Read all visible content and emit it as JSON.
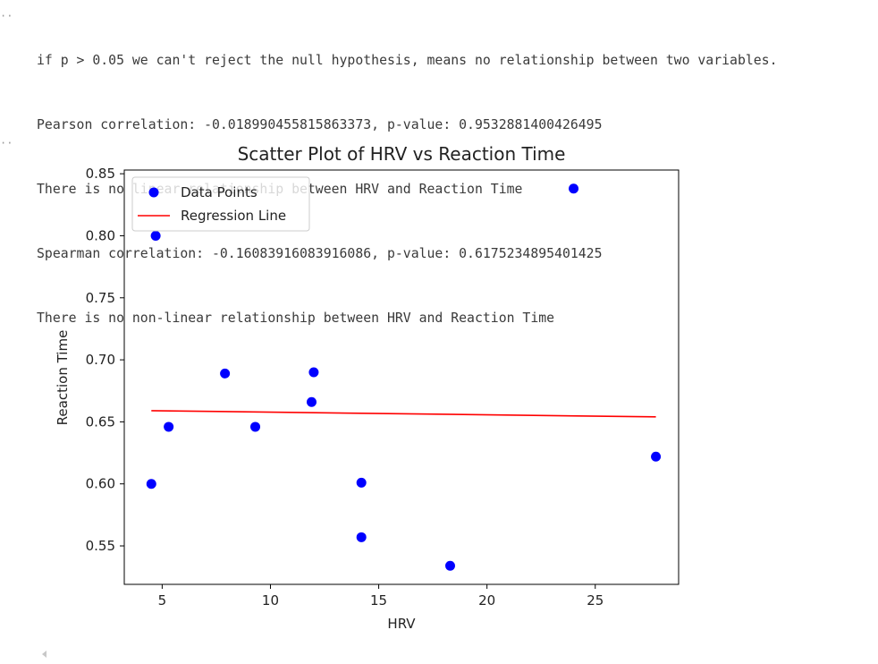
{
  "cell": {
    "gutter_marker_1": "··",
    "gutter_marker_2": "··",
    "output_lines": [
      "if p > 0.05 we can't reject the null hypothesis, means no relationship between two variables.",
      "Pearson correlation: -0.018990455815863373, p-value: 0.9532881400426495",
      "There is no linear relationship between HRV and Reaction Time",
      "Spearman correlation: -0.16083916083916086, p-value: 0.6175234895401425",
      "There is no non-linear relationship between HRV and Reaction Time"
    ]
  },
  "chart_data": {
    "type": "scatter",
    "title": "Scatter Plot of HRV vs Reaction Time",
    "xlabel": "HRV",
    "ylabel": "Reaction Time",
    "xlim": [
      3.25,
      28.85
    ],
    "ylim": [
      0.519,
      0.853
    ],
    "xticks": [
      5,
      10,
      15,
      20,
      25
    ],
    "xtick_labels": [
      "5",
      "10",
      "15",
      "20",
      "25"
    ],
    "yticks": [
      0.55,
      0.6,
      0.65,
      0.7,
      0.75,
      0.8,
      0.85
    ],
    "ytick_labels": [
      "0.55",
      "0.60",
      "0.65",
      "0.70",
      "0.75",
      "0.80",
      "0.85"
    ],
    "grid": false,
    "legend_position": "top-left",
    "series": [
      {
        "name": "Data Points",
        "kind": "scatter",
        "color": "#0000ff",
        "x": [
          4.7,
          24.0,
          7.9,
          12.0,
          11.9,
          5.3,
          9.3,
          4.5,
          14.2,
          14.2,
          18.3,
          27.8
        ],
        "y": [
          0.8,
          0.838,
          0.689,
          0.69,
          0.666,
          0.646,
          0.646,
          0.6,
          0.601,
          0.557,
          0.534,
          0.622
        ]
      },
      {
        "name": "Regression Line",
        "kind": "line",
        "color": "#ff0000",
        "x": [
          4.5,
          27.8
        ],
        "y": [
          0.659,
          0.654
        ]
      }
    ]
  }
}
